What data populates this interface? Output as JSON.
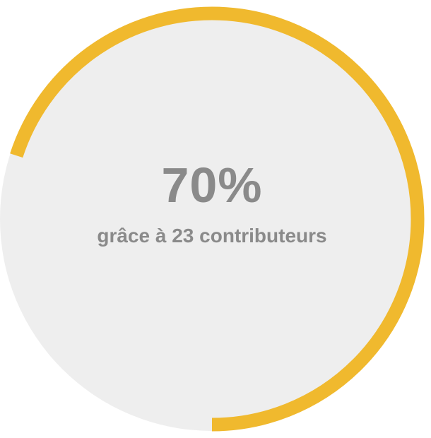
{
  "progress": {
    "percent_label": "70%",
    "value": 0.7,
    "caption": "grâce à 23 contributeurs"
  },
  "colors": {
    "disc": "#eeeeee",
    "arc": "#f0b92e",
    "text": "#8a8a8a"
  }
}
